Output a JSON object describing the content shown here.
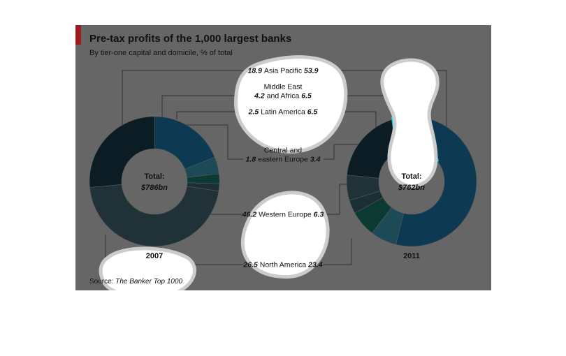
{
  "header": {
    "title": "Pre-tax profits of the 1,000 largest banks",
    "subtitle": "By tier-one capital and domicile, % of total"
  },
  "footer": {
    "source_label": "Source:",
    "source_name": "The Banker Top 1000"
  },
  "colors": {
    "panel": "#666666",
    "accent": "#9b1b1e",
    "line": "#333333",
    "blob": "#ffffff",
    "blob_shadow": "#cccccc",
    "highlight": "#00e5ff"
  },
  "chart_data": {
    "type": "pie",
    "style": "donut",
    "series": [
      {
        "year": "2007",
        "total_label": "Total:",
        "total_value": "$786bn",
        "values": [
          18.9,
          4.2,
          2.5,
          1.8,
          46.2,
          26.5
        ]
      },
      {
        "year": "2011",
        "total_label": "Total:",
        "total_value": "$762bn",
        "values": [
          53.9,
          6.5,
          6.5,
          3.4,
          6.3,
          23.4
        ]
      }
    ],
    "categories": [
      {
        "label": "Asia Pacific",
        "v2007": "18.9",
        "v2011": "53.9",
        "color": "#0d3a52"
      },
      {
        "label": "Middle East and Africa",
        "label_line1": "Middle East",
        "label_line2": "and Africa",
        "v2007": "4.2",
        "v2011": "6.5",
        "color": "#1c4a56"
      },
      {
        "label": "Latin America",
        "v2007": "2.5",
        "v2011": "6.5",
        "color": "#0b3a34"
      },
      {
        "label": "Central and eastern Europe",
        "label_line1": "Central and",
        "label_line2": "eastern Europe",
        "v2007": "1.8",
        "v2011": "3.4",
        "color": "#1a2e33"
      },
      {
        "label": "Western Europe",
        "v2007": "46.2",
        "v2011": "6.3",
        "color": "#203238"
      },
      {
        "label": "North America",
        "v2007": "26.5",
        "v2011": "23.4",
        "color": "#0b1c24"
      }
    ]
  }
}
